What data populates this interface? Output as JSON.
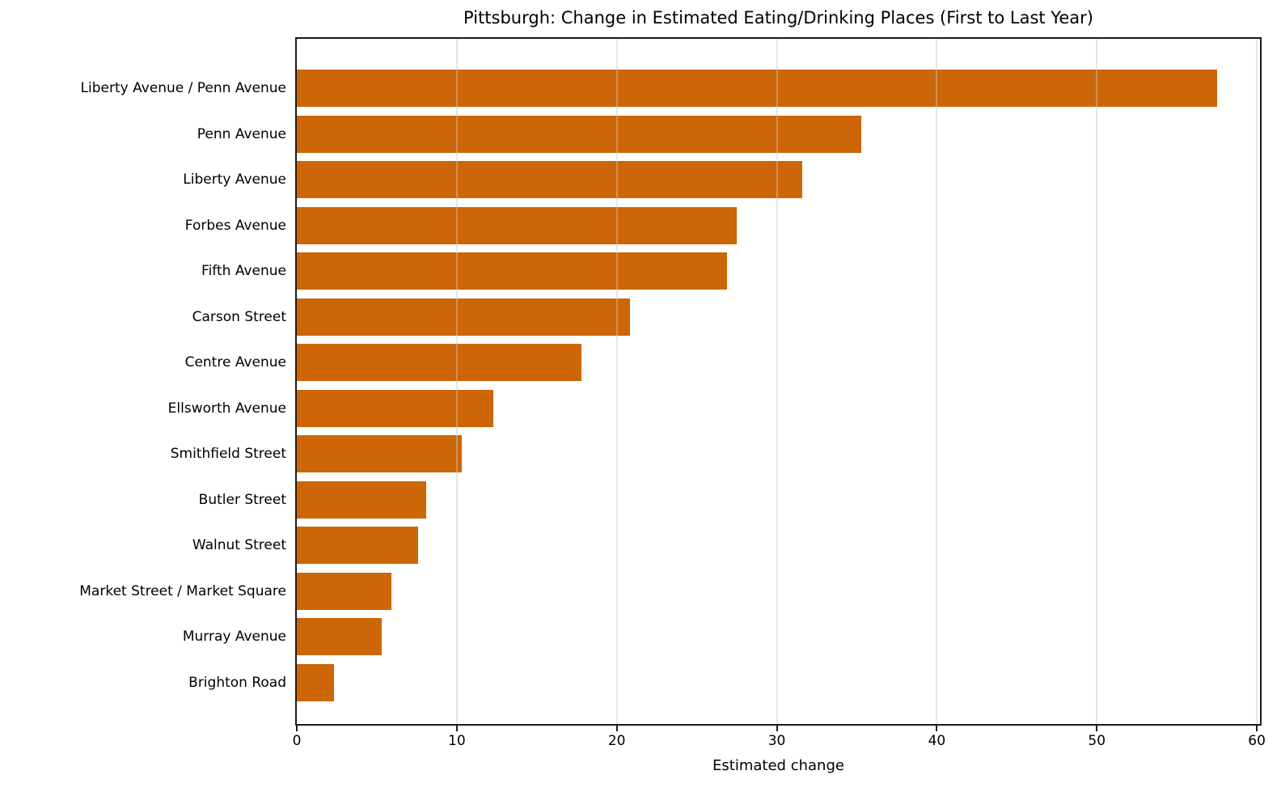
{
  "chart_data": {
    "type": "bar",
    "orientation": "horizontal",
    "title": "Pittsburgh: Change in Estimated Eating/Drinking Places (First to Last Year)",
    "xlabel": "Estimated change",
    "ylabel": "",
    "categories": [
      "Liberty Avenue / Penn Avenue",
      "Penn Avenue",
      "Liberty Avenue",
      "Forbes Avenue",
      "Fifth Avenue",
      "Carson Street",
      "Centre Avenue",
      "Ellsworth Avenue",
      "Smithfield Street",
      "Butler Street",
      "Walnut Street",
      "Market Street / Market Square",
      "Murray Avenue",
      "Brighton Road"
    ],
    "values": [
      57.5,
      35.3,
      31.6,
      27.5,
      26.9,
      20.8,
      17.8,
      12.3,
      10.3,
      8.1,
      7.6,
      5.9,
      5.3,
      2.3
    ],
    "xticks": [
      0,
      10,
      20,
      30,
      40,
      50,
      60
    ],
    "xlim": [
      0,
      60.4
    ],
    "grid": true,
    "legend": false,
    "bar_color": "#CC6606",
    "spine_color": "#1a1a1a",
    "background": "#ffffff"
  }
}
